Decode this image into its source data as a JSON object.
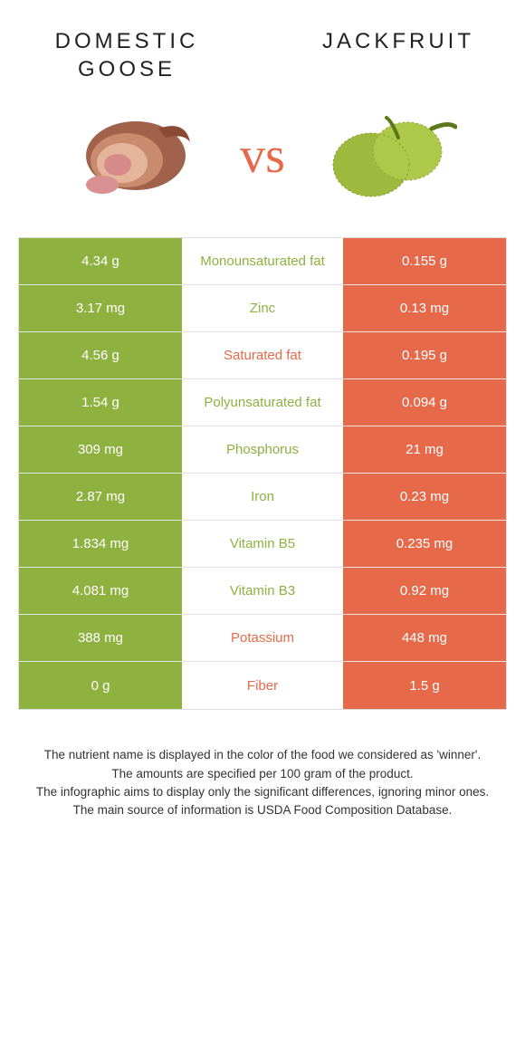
{
  "colors": {
    "left": "#8eb140",
    "right": "#e6694a",
    "white": "#ffffff",
    "border": "#e5e5e5",
    "text": "#333333"
  },
  "header": {
    "left_title_line1": "Domestic",
    "left_title_line2": "goose",
    "right_title": "Jackfruit"
  },
  "vs_label": "vs",
  "rows": [
    {
      "left": "4.34 g",
      "nutrient": "Monounsaturated fat",
      "right": "0.155 g",
      "winner": "left"
    },
    {
      "left": "3.17 mg",
      "nutrient": "Zinc",
      "right": "0.13 mg",
      "winner": "left"
    },
    {
      "left": "4.56 g",
      "nutrient": "Saturated fat",
      "right": "0.195 g",
      "winner": "right"
    },
    {
      "left": "1.54 g",
      "nutrient": "Polyunsaturated fat",
      "right": "0.094 g",
      "winner": "left"
    },
    {
      "left": "309 mg",
      "nutrient": "Phosphorus",
      "right": "21 mg",
      "winner": "left"
    },
    {
      "left": "2.87 mg",
      "nutrient": "Iron",
      "right": "0.23 mg",
      "winner": "left"
    },
    {
      "left": "1.834 mg",
      "nutrient": "Vitamin B5",
      "right": "0.235 mg",
      "winner": "left"
    },
    {
      "left": "4.081 mg",
      "nutrient": "Vitamin B3",
      "right": "0.92 mg",
      "winner": "left"
    },
    {
      "left": "388 mg",
      "nutrient": "Potassium",
      "right": "448 mg",
      "winner": "right"
    },
    {
      "left": "0 g",
      "nutrient": "Fiber",
      "right": "1.5 g",
      "winner": "right"
    }
  ],
  "footnotes": [
    "The nutrient name is displayed in the color of the food we considered as 'winner'.",
    "The amounts are specified per 100 gram of the product.",
    "The infographic aims to display only the significant differences, ignoring minor ones.",
    "The main source of information is USDA Food Composition Database."
  ]
}
